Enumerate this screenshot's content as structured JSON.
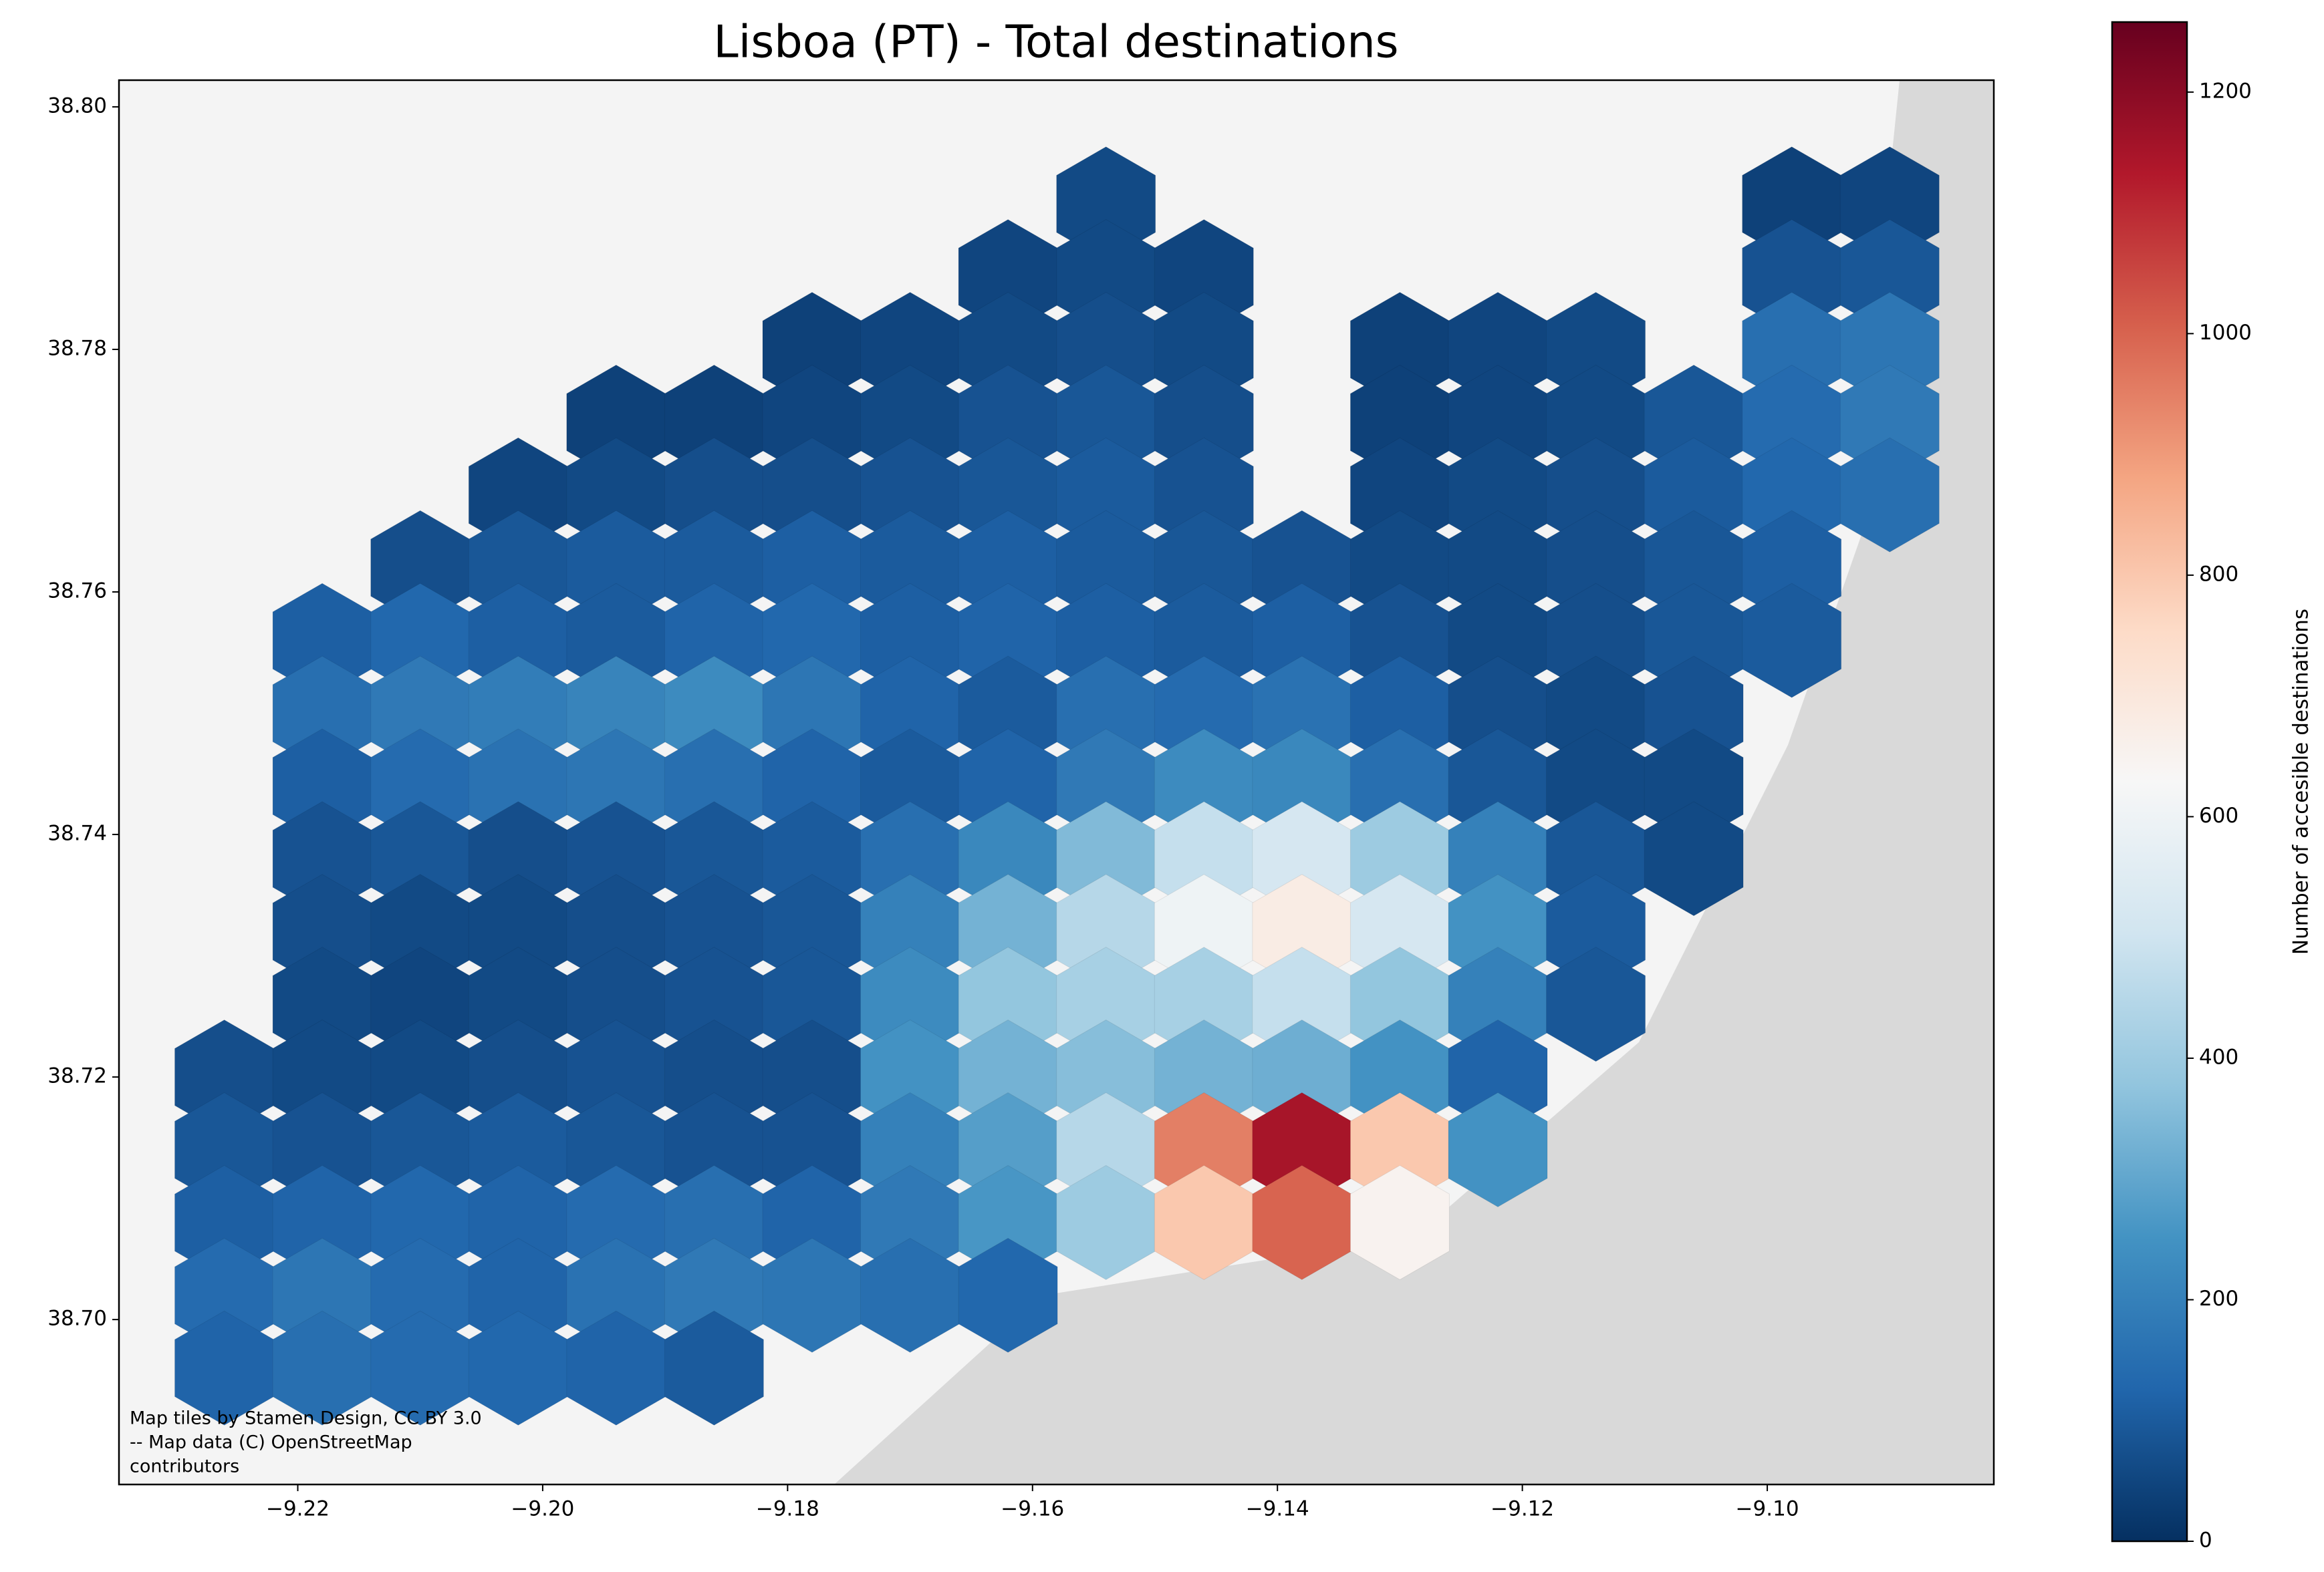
{
  "chart_data": {
    "type": "hexbin",
    "title": "Lisboa (PT) -  Total destinations",
    "colorbar_label": "Number of accesible destinations",
    "attribution": [
      "Map tiles by Stamen Design, CC BY 3.0",
      "-- Map data (C) OpenStreetMap",
      "contributors"
    ],
    "colormap": [
      "#053061",
      "#2166ac",
      "#4393c3",
      "#92c5de",
      "#d1e5f0",
      "#f7f7f7",
      "#fddbc7",
      "#f4a582",
      "#d6604d",
      "#b2182b",
      "#67001f"
    ],
    "clim": [
      0,
      1258
    ],
    "cticks": [
      0,
      200,
      400,
      600,
      800,
      1000,
      1200
    ],
    "xlim": [
      -9.2346,
      -9.0815
    ],
    "ylim": [
      38.6864,
      38.8022
    ],
    "xticks": [
      {
        "value": -9.22,
        "label": "−9.22"
      },
      {
        "value": -9.2,
        "label": "−9.20"
      },
      {
        "value": -9.18,
        "label": "−9.18"
      },
      {
        "value": -9.16,
        "label": "−9.16"
      },
      {
        "value": -9.14,
        "label": "−9.14"
      },
      {
        "value": -9.12,
        "label": "−9.12"
      },
      {
        "value": -9.1,
        "label": "−9.10"
      }
    ],
    "yticks": [
      {
        "value": 38.7,
        "label": "38.70"
      },
      38.72,
      38.74,
      38.76,
      38.78,
      {
        "value": 38.8,
        "label": "38.80"
      }
    ],
    "x": [
      -9.226,
      -9.218,
      -9.21,
      -9.202,
      -9.194,
      -9.186,
      -9.178,
      -9.17,
      -9.162,
      -9.154,
      -9.146,
      -9.138,
      -9.13,
      -9.122,
      -9.114,
      -9.106,
      -9.098,
      -9.09
    ],
    "y": [
      38.792,
      38.786,
      38.78,
      38.774,
      38.768,
      38.762,
      38.756,
      38.75,
      38.744,
      38.738,
      38.732,
      38.726,
      38.72,
      38.714,
      38.708,
      38.702,
      38.696
    ],
    "values": [
      [
        null,
        null,
        null,
        null,
        null,
        null,
        null,
        null,
        null,
        60,
        null,
        null,
        null,
        null,
        null,
        null,
        40,
        50
      ],
      [
        null,
        null,
        null,
        null,
        null,
        null,
        null,
        null,
        50,
        60,
        50,
        null,
        null,
        null,
        null,
        null,
        80,
        90
      ],
      [
        null,
        null,
        null,
        null,
        null,
        null,
        40,
        50,
        60,
        70,
        60,
        null,
        40,
        50,
        60,
        null,
        150,
        170
      ],
      [
        null,
        null,
        null,
        null,
        40,
        40,
        50,
        60,
        80,
        90,
        70,
        null,
        40,
        50,
        60,
        90,
        140,
        180
      ],
      [
        null,
        null,
        null,
        50,
        60,
        70,
        70,
        80,
        90,
        100,
        80,
        null,
        50,
        60,
        70,
        100,
        130,
        150
      ],
      [
        null,
        null,
        70,
        90,
        100,
        100,
        110,
        100,
        110,
        100,
        90,
        80,
        60,
        60,
        70,
        90,
        110,
        null
      ],
      [
        null,
        110,
        130,
        110,
        100,
        120,
        130,
        110,
        120,
        110,
        100,
        110,
        80,
        60,
        70,
        90,
        100,
        null
      ],
      [
        null,
        150,
        180,
        190,
        210,
        230,
        170,
        120,
        100,
        150,
        140,
        160,
        110,
        70,
        60,
        80,
        null,
        null
      ],
      [
        null,
        110,
        140,
        160,
        170,
        150,
        120,
        100,
        120,
        180,
        230,
        220,
        150,
        90,
        60,
        60,
        null,
        null
      ],
      [
        null,
        80,
        90,
        70,
        80,
        90,
        100,
        150,
        220,
        350,
        480,
        520,
        400,
        200,
        90,
        60,
        null,
        null
      ],
      [
        null,
        70,
        60,
        60,
        70,
        80,
        90,
        200,
        330,
        450,
        600,
        680,
        520,
        250,
        100,
        null,
        null,
        null
      ],
      [
        null,
        60,
        50,
        60,
        70,
        80,
        90,
        230,
        380,
        420,
        420,
        480,
        380,
        200,
        90,
        null,
        null,
        null
      ],
      [
        70,
        60,
        60,
        70,
        80,
        70,
        70,
        250,
        330,
        360,
        330,
        320,
        250,
        120,
        null,
        null,
        null,
        null
      ],
      [
        90,
        80,
        90,
        100,
        90,
        80,
        80,
        200,
        280,
        450,
        950,
        1150,
        800,
        250,
        null,
        null,
        null,
        null
      ],
      [
        110,
        120,
        130,
        120,
        140,
        150,
        120,
        180,
        260,
        400,
        800,
        1000,
        650,
        null,
        null,
        null,
        null,
        null
      ],
      [
        140,
        170,
        140,
        120,
        160,
        180,
        170,
        150,
        130,
        null,
        null,
        null,
        null,
        null,
        null,
        null,
        null,
        null
      ],
      [
        120,
        150,
        140,
        130,
        120,
        100,
        null,
        null,
        null,
        null,
        null,
        null,
        null,
        null,
        null,
        null,
        null,
        null
      ]
    ]
  }
}
